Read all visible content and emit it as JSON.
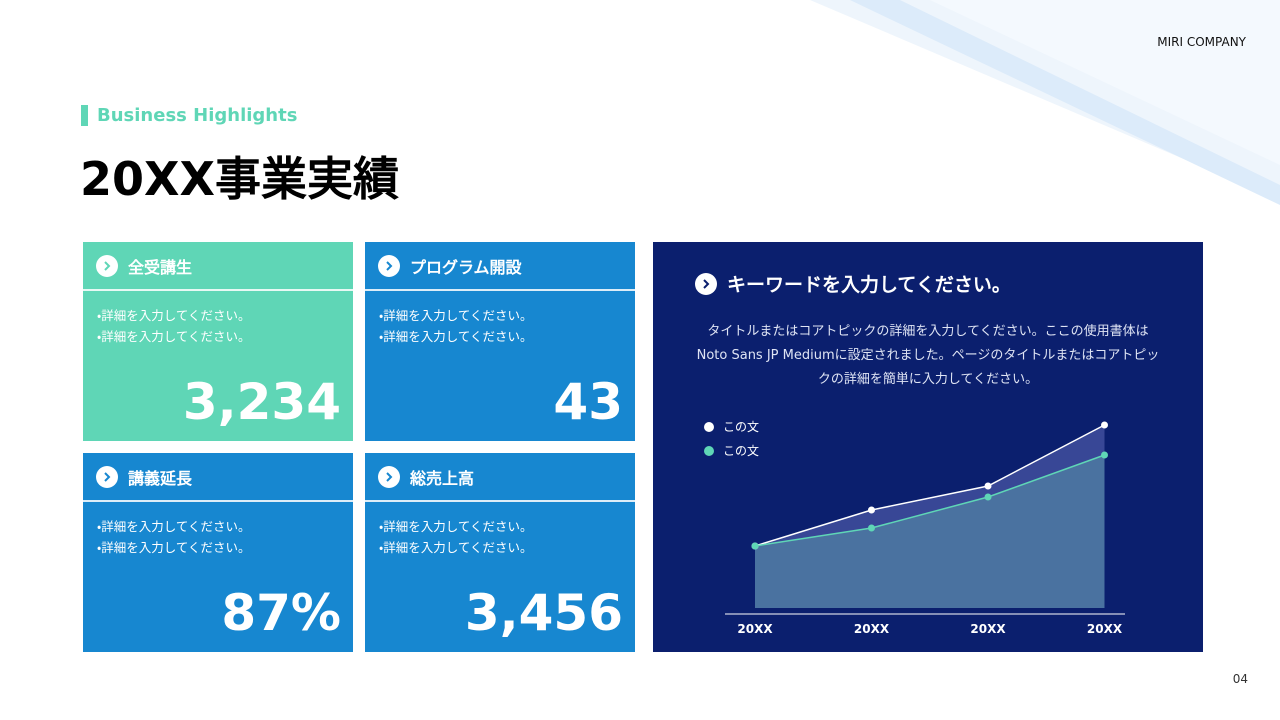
{
  "header": {
    "brand": "MIRI COMPANY",
    "subtitle": "Business Highlights",
    "title": "20XX事業実績",
    "page_number": "04"
  },
  "cards": [
    {
      "title": "全受講生",
      "bullets": [
        "・詳細を入力してください。",
        "・詳細を入力してください。"
      ],
      "value": "3,234",
      "color": "#5fd6b6"
    },
    {
      "title": "プログラム開設",
      "bullets": [
        "・詳細を入力してください。",
        "・詳細を入力してください。"
      ],
      "value": "43",
      "color": "#1787d0"
    },
    {
      "title": "講義延長",
      "bullets": [
        "・詳細を入力してください。",
        "・詳細を入力してください。"
      ],
      "value": "87%",
      "color": "#1787d0"
    },
    {
      "title": "総売上高",
      "bullets": [
        "・詳細を入力してください。",
        "・詳細を入力してください。"
      ],
      "value": "3,456",
      "color": "#1787d0"
    }
  ],
  "panel": {
    "title": "キーワードを入力してください。",
    "description": "タイトルまたはコアトピックの詳細を入力してください。ここの使用書体は Noto Sans JP Mediumに設定されました。ページのタイトルまたはコアトピックの詳細を簡単に入力してください。",
    "chart_data": {
      "type": "line",
      "categories": [
        "20XX",
        "20XX",
        "20XX",
        "20XX"
      ],
      "ylim": [
        0,
        200
      ],
      "series": [
        {
          "name": "この文",
          "color": "#ffffff",
          "values": [
            62,
            98,
            122,
            183
          ]
        },
        {
          "name": "この文",
          "color": "#5fd6b6",
          "values": [
            62,
            80,
            111,
            153
          ]
        }
      ]
    }
  }
}
